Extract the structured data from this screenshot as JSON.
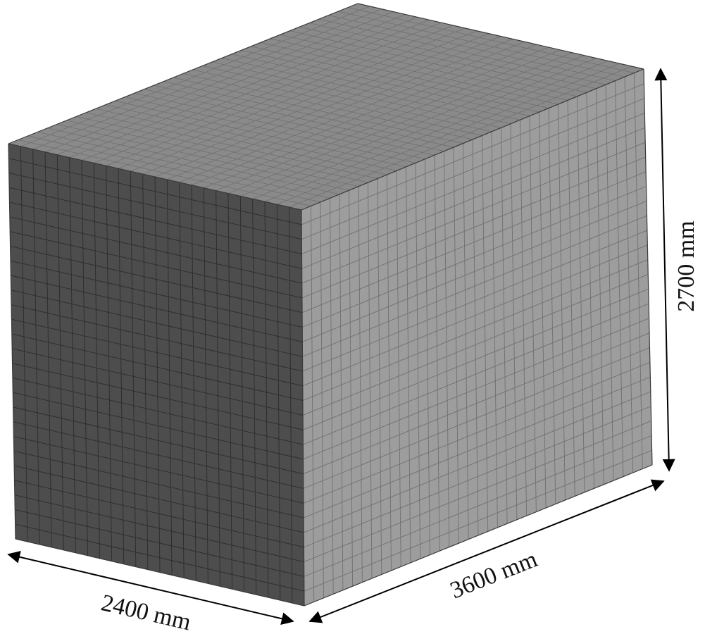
{
  "model": {
    "type": "box-mesh",
    "mesh_divisions": {
      "width": 24,
      "length": 36,
      "height": 27
    }
  },
  "dimensions": {
    "width_label": "2400 mm",
    "length_label": "3600 mm",
    "height_label": "2700 mm"
  },
  "colors": {
    "front_face": "#4d4d4d",
    "side_face": "#9d9d9d",
    "top_face": "#8a8a8a",
    "grid_front": "#2c2c2c",
    "grid_light": "#707070",
    "arrow": "#000000"
  }
}
